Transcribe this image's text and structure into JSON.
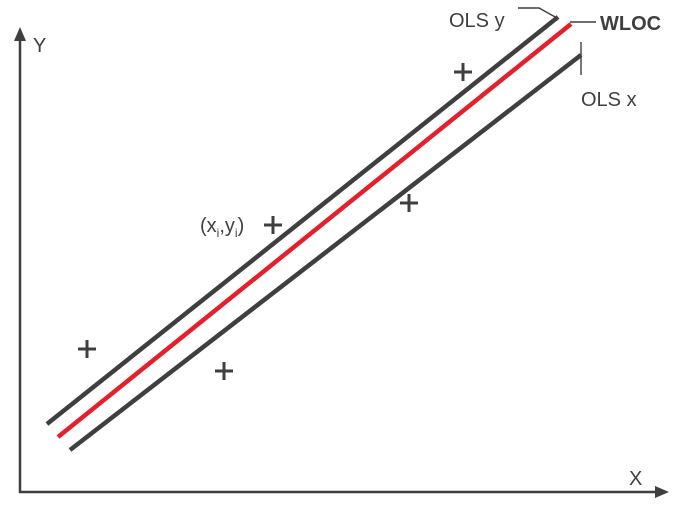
{
  "axes": {
    "x_label": "X",
    "y_label": "Y"
  },
  "lines": [
    {
      "key": "ols_y",
      "label": "OLS y",
      "color": "#3f3f3f"
    },
    {
      "key": "wloc",
      "label": "WLOC",
      "color": "#e3202b"
    },
    {
      "key": "ols_x",
      "label": "OLS x",
      "color": "#3f3f3f"
    }
  ],
  "point_label": {
    "open": "(x",
    "sub1": "i",
    "comma": ",y",
    "sub2": "i",
    "close": ")"
  },
  "colors": {
    "ink": "#3f3f3f",
    "accent": "#e3202b",
    "background": "#ffffff"
  }
}
